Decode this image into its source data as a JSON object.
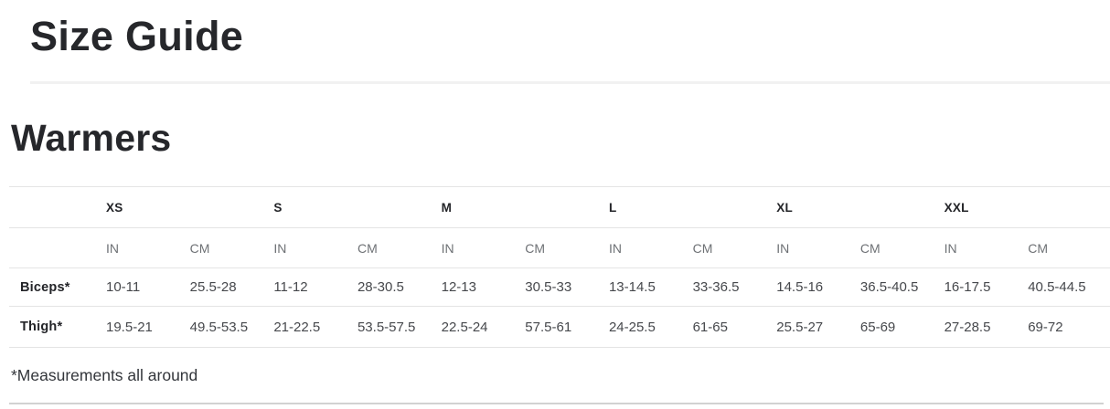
{
  "page": {
    "title": "Size Guide"
  },
  "warmers": {
    "title": "Warmers",
    "footnote": "*Measurements all around",
    "table": {
      "sizes": [
        "XS",
        "S",
        "M",
        "L",
        "XL",
        "XXL"
      ],
      "units": [
        "IN",
        "CM"
      ],
      "rows": [
        {
          "label": "Biceps*",
          "values": [
            "10-11",
            "25.5-28",
            "11-12",
            "28-30.5",
            "12-13",
            "30.5-33",
            "13-14.5",
            "33-36.5",
            "14.5-16",
            "36.5-40.5",
            "16-17.5",
            "40.5-44.5"
          ]
        },
        {
          "label": "Thigh*",
          "values": [
            "19.5-21",
            "49.5-53.5",
            "21-22.5",
            "53.5-57.5",
            "22.5-24",
            "57.5-61",
            "24-25.5",
            "61-65",
            "25.5-27",
            "65-69",
            "27-28.5",
            "69-72"
          ]
        }
      ]
    }
  },
  "colors": {
    "heading_text": "#26272b",
    "data_text": "#46484c",
    "muted_text": "#6e7175",
    "table_border": "#e4e4e4",
    "title_divider": "#f1f1f1",
    "bottom_divider": "#d2d2d2"
  }
}
